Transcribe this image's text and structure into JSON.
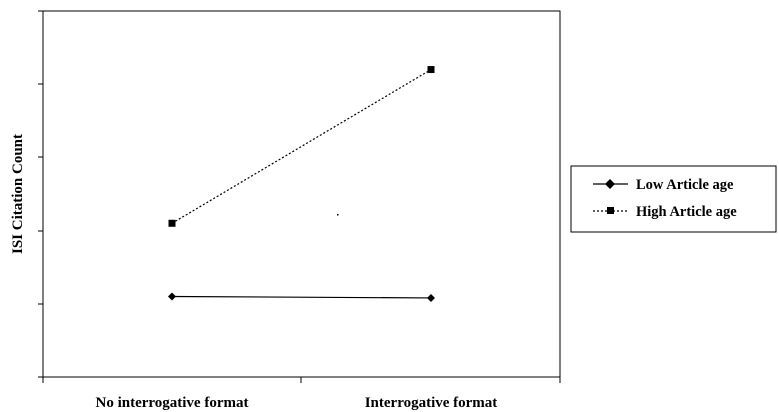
{
  "chart_data": {
    "type": "line",
    "title": "",
    "xlabel": "",
    "ylabel": "ISI Citation Count",
    "categories": [
      "No interrogative format",
      "Interrogative format"
    ],
    "series": [
      {
        "name": "Low Article age",
        "values": [
          1.1,
          1.08
        ],
        "marker": "diamond",
        "line": "solid",
        "color": "#000000"
      },
      {
        "name": "High Article age",
        "values": [
          2.1,
          4.2
        ],
        "marker": "square",
        "line": "dashed",
        "color": "#000000"
      }
    ],
    "ylim": [
      0,
      5
    ],
    "grid": false,
    "legend": "right"
  }
}
